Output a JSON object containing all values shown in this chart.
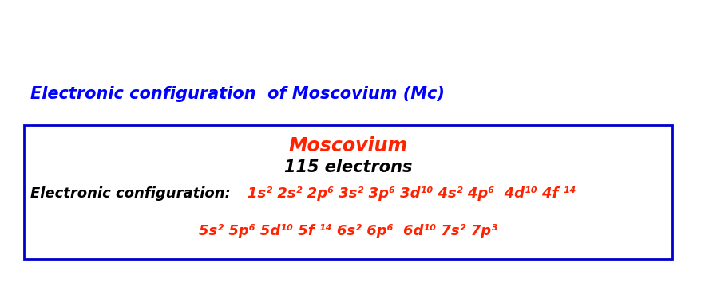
{
  "title": "Electronic configuration  of Moscovium (Mc)",
  "title_color": "#0000FF",
  "title_fontsize": 15,
  "title_style": "italic",
  "title_weight": "bold",
  "element_name": "Moscovium",
  "element_name_color": "#FF2200",
  "element_name_fontsize": 17,
  "electrons_text": "115 electrons",
  "electrons_color": "#000000",
  "electrons_fontsize": 15,
  "config_label": "Electronic configuration: ",
  "config_label_color": "#000000",
  "config_label_fontsize": 13,
  "config_line1": "1s² 2s² 2p⁶ 3s² 3p⁶ 3d¹⁰ 4s² 4p⁶  4d¹⁰ 4f ¹⁴",
  "config_line2": "5s² 5p⁶ 5d¹⁰ 5f ¹⁴ 6s² 6p⁶  6d¹⁰ 7s² 7p³",
  "config_color": "#FF2200",
  "config_fontsize": 13,
  "box_edge_color": "#0000CC",
  "background_color": "#FFFFFF",
  "fig_width": 8.79,
  "fig_height": 3.84,
  "fig_dpi": 100
}
